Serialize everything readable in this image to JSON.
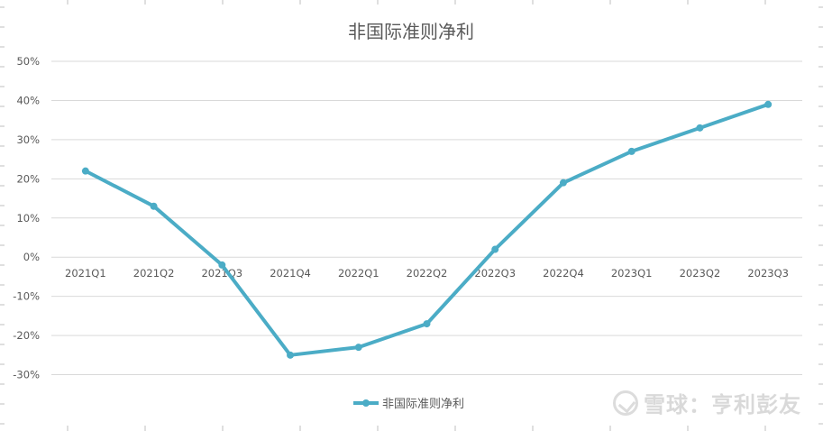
{
  "chart_data": {
    "type": "line",
    "title": "非国际准则净利",
    "categories": [
      "2021Q1",
      "2021Q2",
      "2021Q3",
      "2021Q4",
      "2022Q1",
      "2022Q2",
      "2022Q3",
      "2022Q4",
      "2023Q1",
      "2023Q2",
      "2023Q3"
    ],
    "series": [
      {
        "name": "非国际准则净利",
        "values": [
          22,
          13,
          -2,
          -25,
          -23,
          -17,
          2,
          19,
          27,
          33,
          39
        ],
        "color": "#4bacc6"
      }
    ],
    "ylim": [
      -40,
      50
    ],
    "yticks": [
      "50%",
      "40%",
      "30%",
      "20%",
      "10%",
      "0%",
      "-10%",
      "-20%",
      "-30%"
    ],
    "ytick_values": [
      50,
      40,
      30,
      20,
      10,
      0,
      -10,
      -20,
      -30
    ],
    "xlabel": "",
    "ylabel": "",
    "grid": true,
    "legend": "bottom"
  },
  "watermark": {
    "text": "雪球：亨利彭友"
  }
}
